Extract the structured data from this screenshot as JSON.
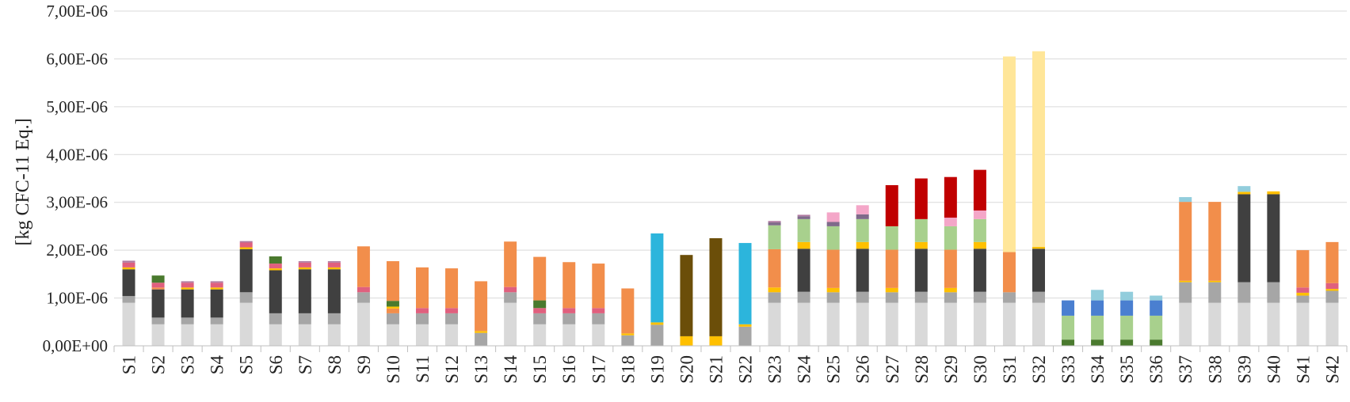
{
  "chart_data": {
    "type": "bar",
    "stacked": true,
    "ylabel": "[kg CFC-11 Eq.]",
    "xlabel": "",
    "title": "",
    "ylim": [
      0,
      7e-06
    ],
    "yticks": [
      0,
      1e-06,
      2e-06,
      3e-06,
      4e-06,
      5e-06,
      6e-06,
      7e-06
    ],
    "ytick_labels": [
      "0,00E+00",
      "1,00E-06",
      "2,00E-06",
      "3,00E-06",
      "4,00E-06",
      "5,00E-06",
      "6,00E-06",
      "7,00E-06"
    ],
    "grid": true,
    "legend": "none",
    "categories": [
      "S1",
      "S2",
      "S3",
      "S4",
      "S5",
      "S6",
      "S7",
      "S8",
      "S9",
      "S10",
      "S11",
      "S12",
      "S13",
      "S14",
      "S15",
      "S16",
      "S17",
      "S18",
      "S19",
      "S20",
      "S21",
      "S22",
      "S23",
      "S24",
      "S25",
      "S26",
      "S27",
      "S28",
      "S29",
      "S30",
      "S31",
      "S32",
      "S33",
      "S34",
      "S35",
      "S36",
      "S37",
      "S38",
      "S39",
      "S40",
      "S41",
      "S42"
    ],
    "segments": [
      [
        {
          "v": 9e-07,
          "c": "#d9d9d9"
        },
        {
          "v": 1.4e-07,
          "c": "#a6a6a6"
        },
        {
          "v": 5.6e-07,
          "c": "#404040"
        },
        {
          "v": 4e-08,
          "c": "#ffc000"
        },
        {
          "v": 1e-07,
          "c": "#e0607e"
        },
        {
          "v": 4e-08,
          "c": "#b07aa1"
        }
      ],
      [
        {
          "v": 4.5e-07,
          "c": "#d9d9d9"
        },
        {
          "v": 1.4e-07,
          "c": "#a6a6a6"
        },
        {
          "v": 5.9e-07,
          "c": "#404040"
        },
        {
          "v": 4e-08,
          "c": "#f28e4b"
        },
        {
          "v": 1e-07,
          "c": "#e0607e"
        },
        {
          "v": 1.5e-07,
          "c": "#4a7a2e"
        }
      ],
      [
        {
          "v": 4.5e-07,
          "c": "#d9d9d9"
        },
        {
          "v": 1.4e-07,
          "c": "#a6a6a6"
        },
        {
          "v": 5.9e-07,
          "c": "#404040"
        },
        {
          "v": 4e-08,
          "c": "#ffc000"
        },
        {
          "v": 1e-07,
          "c": "#e0607e"
        },
        {
          "v": 3e-08,
          "c": "#b07aa1"
        }
      ],
      [
        {
          "v": 4.5e-07,
          "c": "#d9d9d9"
        },
        {
          "v": 1.4e-07,
          "c": "#a6a6a6"
        },
        {
          "v": 5.9e-07,
          "c": "#404040"
        },
        {
          "v": 4e-08,
          "c": "#ffc000"
        },
        {
          "v": 1e-07,
          "c": "#e0607e"
        },
        {
          "v": 3e-08,
          "c": "#b07aa1"
        }
      ],
      [
        {
          "v": 9e-07,
          "c": "#d9d9d9"
        },
        {
          "v": 2.2e-07,
          "c": "#a6a6a6"
        },
        {
          "v": 9e-07,
          "c": "#404040"
        },
        {
          "v": 4e-08,
          "c": "#ffc000"
        },
        {
          "v": 1e-07,
          "c": "#e0607e"
        },
        {
          "v": 3e-08,
          "c": "#b07aa1"
        }
      ],
      [
        {
          "v": 4.5e-07,
          "c": "#d9d9d9"
        },
        {
          "v": 2.3e-07,
          "c": "#a6a6a6"
        },
        {
          "v": 9e-07,
          "c": "#404040"
        },
        {
          "v": 4e-08,
          "c": "#ffc000"
        },
        {
          "v": 1e-07,
          "c": "#e0607e"
        },
        {
          "v": 1.5e-07,
          "c": "#4a7a2e"
        }
      ],
      [
        {
          "v": 4.5e-07,
          "c": "#d9d9d9"
        },
        {
          "v": 2.3e-07,
          "c": "#a6a6a6"
        },
        {
          "v": 9.2e-07,
          "c": "#404040"
        },
        {
          "v": 4e-08,
          "c": "#ffc000"
        },
        {
          "v": 1e-07,
          "c": "#e0607e"
        },
        {
          "v": 3e-08,
          "c": "#b07aa1"
        }
      ],
      [
        {
          "v": 4.5e-07,
          "c": "#d9d9d9"
        },
        {
          "v": 2.3e-07,
          "c": "#a6a6a6"
        },
        {
          "v": 9.2e-07,
          "c": "#404040"
        },
        {
          "v": 4e-08,
          "c": "#ffc000"
        },
        {
          "v": 1e-07,
          "c": "#e0607e"
        },
        {
          "v": 3e-08,
          "c": "#b07aa1"
        }
      ],
      [
        {
          "v": 9e-07,
          "c": "#d9d9d9"
        },
        {
          "v": 2.2e-07,
          "c": "#a6a6a6"
        },
        {
          "v": 1.1e-07,
          "c": "#e0607e"
        },
        {
          "v": 8.5e-07,
          "c": "#f28e4b"
        }
      ],
      [
        {
          "v": 4.5e-07,
          "c": "#d9d9d9"
        },
        {
          "v": 2.3e-07,
          "c": "#a6a6a6"
        },
        {
          "v": 1e-07,
          "c": "#f28e4b"
        },
        {
          "v": 4e-08,
          "c": "#ffc000"
        },
        {
          "v": 1.2e-07,
          "c": "#4a7a2e"
        },
        {
          "v": 8.3e-07,
          "c": "#f28e4b"
        }
      ],
      [
        {
          "v": 4.5e-07,
          "c": "#d9d9d9"
        },
        {
          "v": 2.3e-07,
          "c": "#a6a6a6"
        },
        {
          "v": 1.1e-07,
          "c": "#e0607e"
        },
        {
          "v": 8.5e-07,
          "c": "#f28e4b"
        }
      ],
      [
        {
          "v": 4.5e-07,
          "c": "#d9d9d9"
        },
        {
          "v": 2.3e-07,
          "c": "#a6a6a6"
        },
        {
          "v": 1.1e-07,
          "c": "#e0607e"
        },
        {
          "v": 8.3e-07,
          "c": "#f28e4b"
        }
      ],
      [
        {
          "v": 2.7e-07,
          "c": "#a6a6a6"
        },
        {
          "v": 4e-08,
          "c": "#ffc000"
        },
        {
          "v": 1.04e-06,
          "c": "#f28e4b"
        }
      ],
      [
        {
          "v": 9e-07,
          "c": "#d9d9d9"
        },
        {
          "v": 2.2e-07,
          "c": "#a6a6a6"
        },
        {
          "v": 1.1e-07,
          "c": "#e0607e"
        },
        {
          "v": 9.5e-07,
          "c": "#f28e4b"
        }
      ],
      [
        {
          "v": 4.5e-07,
          "c": "#d9d9d9"
        },
        {
          "v": 2.3e-07,
          "c": "#a6a6a6"
        },
        {
          "v": 1.1e-07,
          "c": "#e0607e"
        },
        {
          "v": 1.6e-07,
          "c": "#4a7a2e"
        },
        {
          "v": 9.1e-07,
          "c": "#f28e4b"
        }
      ],
      [
        {
          "v": 4.5e-07,
          "c": "#d9d9d9"
        },
        {
          "v": 2.3e-07,
          "c": "#a6a6a6"
        },
        {
          "v": 1.1e-07,
          "c": "#e0607e"
        },
        {
          "v": 9.6e-07,
          "c": "#f28e4b"
        }
      ],
      [
        {
          "v": 4.5e-07,
          "c": "#d9d9d9"
        },
        {
          "v": 2.3e-07,
          "c": "#a6a6a6"
        },
        {
          "v": 1.1e-07,
          "c": "#e0607e"
        },
        {
          "v": 9.3e-07,
          "c": "#f28e4b"
        }
      ],
      [
        {
          "v": 2.2e-07,
          "c": "#a6a6a6"
        },
        {
          "v": 4e-08,
          "c": "#ffc000"
        },
        {
          "v": 9.4e-07,
          "c": "#f28e4b"
        }
      ],
      [
        {
          "v": 4.4e-07,
          "c": "#a6a6a6"
        },
        {
          "v": 5e-08,
          "c": "#ffc000"
        },
        {
          "v": 1.86e-06,
          "c": "#2cb5dc"
        }
      ],
      [
        {
          "v": 2e-07,
          "c": "#ffc000"
        },
        {
          "v": 1.7e-06,
          "c": "#6b4e09"
        }
      ],
      [
        {
          "v": 2e-07,
          "c": "#ffc000"
        },
        {
          "v": 2.05e-06,
          "c": "#6b4e09"
        }
      ],
      [
        {
          "v": 4e-07,
          "c": "#a6a6a6"
        },
        {
          "v": 5e-08,
          "c": "#ffc000"
        },
        {
          "v": 1.7e-06,
          "c": "#2cb5dc"
        }
      ],
      [
        {
          "v": 9e-07,
          "c": "#d9d9d9"
        },
        {
          "v": 2.2e-07,
          "c": "#a6a6a6"
        },
        {
          "v": 1e-07,
          "c": "#ffc000"
        },
        {
          "v": 8e-07,
          "c": "#f28e4b"
        },
        {
          "v": 5e-07,
          "c": "#a8d08d"
        },
        {
          "v": 6e-08,
          "c": "#7f6a8a"
        },
        {
          "v": 3e-08,
          "c": "#b07aa1"
        }
      ],
      [
        {
          "v": 9e-07,
          "c": "#d9d9d9"
        },
        {
          "v": 2.3e-07,
          "c": "#a6a6a6"
        },
        {
          "v": 9e-07,
          "c": "#404040"
        },
        {
          "v": 1.4e-07,
          "c": "#ffc000"
        },
        {
          "v": 4.8e-07,
          "c": "#a8d08d"
        },
        {
          "v": 6e-08,
          "c": "#7f6a8a"
        },
        {
          "v": 3e-08,
          "c": "#b07aa1"
        }
      ],
      [
        {
          "v": 9e-07,
          "c": "#d9d9d9"
        },
        {
          "v": 2.2e-07,
          "c": "#a6a6a6"
        },
        {
          "v": 9e-08,
          "c": "#ffc000"
        },
        {
          "v": 8e-07,
          "c": "#f28e4b"
        },
        {
          "v": 4.9e-07,
          "c": "#a8d08d"
        },
        {
          "v": 9e-08,
          "c": "#7f6a8a"
        },
        {
          "v": 2e-07,
          "c": "#f4a6c8"
        }
      ],
      [
        {
          "v": 9e-07,
          "c": "#d9d9d9"
        },
        {
          "v": 2.3e-07,
          "c": "#a6a6a6"
        },
        {
          "v": 9e-07,
          "c": "#404040"
        },
        {
          "v": 1.4e-07,
          "c": "#ffc000"
        },
        {
          "v": 4.8e-07,
          "c": "#a8d08d"
        },
        {
          "v": 1e-07,
          "c": "#7f6a8a"
        },
        {
          "v": 1.9e-07,
          "c": "#f4a6c8"
        }
      ],
      [
        {
          "v": 9e-07,
          "c": "#d9d9d9"
        },
        {
          "v": 2.2e-07,
          "c": "#a6a6a6"
        },
        {
          "v": 9e-08,
          "c": "#ffc000"
        },
        {
          "v": 8e-07,
          "c": "#f28e4b"
        },
        {
          "v": 4.9e-07,
          "c": "#a8d08d"
        },
        {
          "v": 8.6e-07,
          "c": "#c00000"
        }
      ],
      [
        {
          "v": 9e-07,
          "c": "#d9d9d9"
        },
        {
          "v": 2.3e-07,
          "c": "#a6a6a6"
        },
        {
          "v": 9e-07,
          "c": "#404040"
        },
        {
          "v": 1.4e-07,
          "c": "#ffc000"
        },
        {
          "v": 4.8e-07,
          "c": "#a8d08d"
        },
        {
          "v": 8.5e-07,
          "c": "#c00000"
        }
      ],
      [
        {
          "v": 9e-07,
          "c": "#d9d9d9"
        },
        {
          "v": 2.2e-07,
          "c": "#a6a6a6"
        },
        {
          "v": 9e-08,
          "c": "#ffc000"
        },
        {
          "v": 8e-07,
          "c": "#f28e4b"
        },
        {
          "v": 4.9e-07,
          "c": "#a8d08d"
        },
        {
          "v": 1.8e-07,
          "c": "#f4a6c8"
        },
        {
          "v": 8.5e-07,
          "c": "#c00000"
        }
      ],
      [
        {
          "v": 9e-07,
          "c": "#d9d9d9"
        },
        {
          "v": 2.3e-07,
          "c": "#a6a6a6"
        },
        {
          "v": 9e-07,
          "c": "#404040"
        },
        {
          "v": 1.4e-07,
          "c": "#ffc000"
        },
        {
          "v": 4.8e-07,
          "c": "#a8d08d"
        },
        {
          "v": 1.8e-07,
          "c": "#f4a6c8"
        },
        {
          "v": 8.5e-07,
          "c": "#c00000"
        }
      ],
      [
        {
          "v": 9e-07,
          "c": "#d9d9d9"
        },
        {
          "v": 2.2e-07,
          "c": "#a6a6a6"
        },
        {
          "v": 8.4e-07,
          "c": "#f28e4b"
        },
        {
          "v": 4.09e-06,
          "c": "#ffe699"
        }
      ],
      [
        {
          "v": 9e-07,
          "c": "#d9d9d9"
        },
        {
          "v": 2.3e-07,
          "c": "#a6a6a6"
        },
        {
          "v": 9e-07,
          "c": "#404040"
        },
        {
          "v": 4e-08,
          "c": "#ffc000"
        },
        {
          "v": 4.09e-06,
          "c": "#ffe699"
        }
      ],
      [
        {
          "v": 1.3e-07,
          "c": "#4a7a2e"
        },
        {
          "v": 5e-07,
          "c": "#a8d08d"
        },
        {
          "v": 3.2e-07,
          "c": "#4a7fd0"
        }
      ],
      [
        {
          "v": 1.3e-07,
          "c": "#4a7a2e"
        },
        {
          "v": 5e-07,
          "c": "#a8d08d"
        },
        {
          "v": 3.2e-07,
          "c": "#4a7fd0"
        },
        {
          "v": 2.2e-07,
          "c": "#92cddc"
        }
      ],
      [
        {
          "v": 1.3e-07,
          "c": "#4a7a2e"
        },
        {
          "v": 5e-07,
          "c": "#a8d08d"
        },
        {
          "v": 3.2e-07,
          "c": "#4a7fd0"
        },
        {
          "v": 1.8e-07,
          "c": "#92cddc"
        }
      ],
      [
        {
          "v": 1.3e-07,
          "c": "#4a7a2e"
        },
        {
          "v": 5e-07,
          "c": "#a8d08d"
        },
        {
          "v": 3.2e-07,
          "c": "#4a7fd0"
        },
        {
          "v": 1e-07,
          "c": "#92cddc"
        }
      ],
      [
        {
          "v": 9e-07,
          "c": "#d9d9d9"
        },
        {
          "v": 4.3e-07,
          "c": "#a6a6a6"
        },
        {
          "v": 3e-08,
          "c": "#ffc000"
        },
        {
          "v": 1.65e-06,
          "c": "#f28e4b"
        },
        {
          "v": 1e-07,
          "c": "#92cddc"
        }
      ],
      [
        {
          "v": 9e-07,
          "c": "#d9d9d9"
        },
        {
          "v": 4.3e-07,
          "c": "#a6a6a6"
        },
        {
          "v": 3e-08,
          "c": "#ffc000"
        },
        {
          "v": 1.65e-06,
          "c": "#f28e4b"
        }
      ],
      [
        {
          "v": 9e-07,
          "c": "#d9d9d9"
        },
        {
          "v": 4.3e-07,
          "c": "#a6a6a6"
        },
        {
          "v": 1.84e-06,
          "c": "#404040"
        },
        {
          "v": 5e-08,
          "c": "#ffc000"
        },
        {
          "v": 1.2e-07,
          "c": "#92cddc"
        }
      ],
      [
        {
          "v": 9e-07,
          "c": "#d9d9d9"
        },
        {
          "v": 4.3e-07,
          "c": "#a6a6a6"
        },
        {
          "v": 1.84e-06,
          "c": "#404040"
        },
        {
          "v": 6e-08,
          "c": "#ffc000"
        }
      ],
      [
        {
          "v": 9e-07,
          "c": "#d9d9d9"
        },
        {
          "v": 1.5e-07,
          "c": "#a6a6a6"
        },
        {
          "v": 6e-08,
          "c": "#ffc000"
        },
        {
          "v": 1.1e-07,
          "c": "#e0607e"
        },
        {
          "v": 7.8e-07,
          "c": "#f28e4b"
        }
      ],
      [
        {
          "v": 9e-07,
          "c": "#d9d9d9"
        },
        {
          "v": 2.5e-07,
          "c": "#a6a6a6"
        },
        {
          "v": 4e-08,
          "c": "#ffc000"
        },
        {
          "v": 1.2e-07,
          "c": "#e0607e"
        },
        {
          "v": 8.6e-07,
          "c": "#f28e4b"
        }
      ]
    ]
  }
}
